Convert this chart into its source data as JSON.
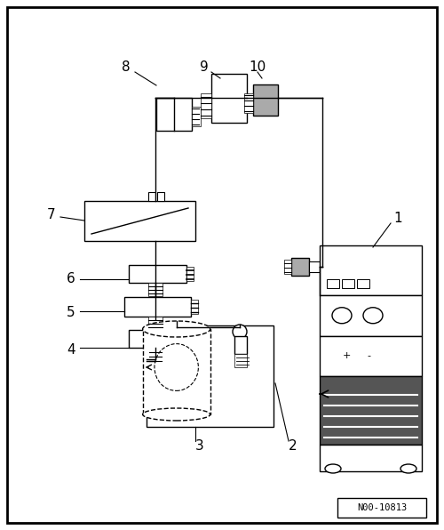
{
  "bg_color": "#ffffff",
  "line_color": "#000000",
  "fig_width": 5.0,
  "fig_height": 5.96,
  "dpi": 100,
  "watermark": "N00-10813",
  "gray": "#aaaaaa",
  "darkgray": "#888888"
}
